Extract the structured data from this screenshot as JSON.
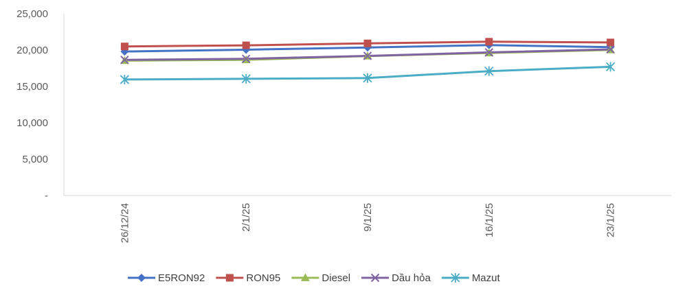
{
  "chart_data": {
    "type": "line",
    "categories": [
      "26/12/24",
      "2/1/25",
      "9/1/25",
      "16/1/25",
      "23/1/25"
    ],
    "ylim": [
      0,
      25000
    ],
    "yticks": [
      0,
      5000,
      10000,
      15000,
      20000,
      25000
    ],
    "ytick_labels": [
      "-",
      "5,000",
      "10,000",
      "15,000",
      "20,000",
      "25,000"
    ],
    "grid": false,
    "legend_position": "bottom",
    "series": [
      {
        "name": "E5RON92",
        "color": "#4472C4",
        "marker": "diamond",
        "values": [
          19800,
          20050,
          20350,
          20680,
          20400
        ]
      },
      {
        "name": "RON95",
        "color": "#C0504D",
        "marker": "square",
        "values": [
          20500,
          20650,
          20920,
          21150,
          21050
        ]
      },
      {
        "name": "Diesel",
        "color": "#9BBB59",
        "marker": "triangle",
        "values": [
          18550,
          18650,
          19180,
          19600,
          20020
        ]
      },
      {
        "name": "Dầu hỏa",
        "color": "#8064A2",
        "marker": "x",
        "values": [
          18650,
          18800,
          19200,
          19680,
          20100
        ]
      },
      {
        "name": "Mazut",
        "color": "#4BACC6",
        "marker": "star",
        "values": [
          15950,
          16050,
          16150,
          17100,
          17700
        ]
      }
    ]
  }
}
